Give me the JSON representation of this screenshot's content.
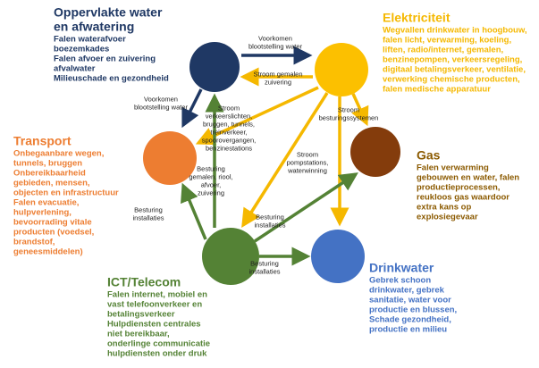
{
  "nodes": [
    {
      "title": "Oppervlakte water",
      "title2": "en afwatering",
      "color": "#1f3864",
      "lines": [
        "Falen waterafvoer",
        "boezemkades",
        "Falen afvoer en zuivering",
        "afvalwater",
        "Milieuschade en gezondheid"
      ]
    },
    {
      "title": "Elektriciteit",
      "color": "#f5b800",
      "lines": [
        "Wegvallen drinkwater in hoogbouw,",
        "falen licht, verwarming, koeling,",
        "liften, radio/internet, gemalen,",
        "benzinepompen, verkeersregeling,",
        "digitaal betalingsverkeer, ventilatie,",
        "verwerking chemische producten,",
        "falen medische apparatuur"
      ]
    },
    {
      "title": "Transport",
      "color": "#ed7d31",
      "lines": [
        "Onbegaanbare wegen,",
        "tunnels, bruggen",
        "Onbereikbaarheid",
        "gebieden, mensen,",
        "objecten en infrastructuur",
        "Falen evacuatie,",
        "hulpverlening,",
        "bevoorrading vitale",
        "producten (voedsel,",
        "brandstof,",
        "geneesmiddelen)"
      ]
    },
    {
      "title": "Gas",
      "color": "#8b4513",
      "lines": [
        "Falen verwarming",
        "gebouwen en water, falen",
        "productieprocessen,",
        "reukloos gas waardoor",
        "extra kans op",
        "explosiegevaar"
      ]
    },
    {
      "title": "ICT/Telecom",
      "color": "#548235",
      "lines": [
        "Falen internet, mobiel en",
        "vast telefoonverkeer en",
        "betalingsverkeer",
        "Hulpdiensten centrales",
        "niet bereikbaar,",
        "onderlinge communicatie",
        "hulpdiensten onder druk"
      ]
    },
    {
      "title": "Drinkwater",
      "color": "#4472c4",
      "lines": [
        "Gebrek schoon",
        "drinkwater, gebrek",
        "sanitatie, water voor",
        "productie en blussen,",
        "Schade gezondheid,",
        "productie en milieu"
      ]
    }
  ],
  "edges": [
    {
      "lines": [
        "Voorkomen",
        "blootstelling water"
      ]
    },
    {
      "lines": [
        "Stroom gemalen",
        "zuivering"
      ]
    },
    {
      "lines": [
        "Voorkomen",
        "blootstelling water"
      ]
    },
    {
      "lines": [
        "Stroom",
        "verkeerslichten,",
        "bruggen, tunnels,",
        "treinverkeer,",
        "spoorovergangen,",
        "benzinestations"
      ]
    },
    {
      "lines": [
        "Stroom",
        "besturingssystemen"
      ]
    },
    {
      "lines": [
        "Stroom",
        "pompstations,",
        "waterwinning"
      ]
    },
    {
      "lines": [
        "Besturing",
        "gemalen, riool,",
        "afvoer,",
        "zuivering"
      ]
    },
    {
      "lines": [
        "Besturing",
        "installaties"
      ]
    },
    {
      "lines": [
        "Besturing",
        "installaties"
      ]
    },
    {
      "lines": [
        "Besturing",
        "installaties"
      ]
    }
  ]
}
